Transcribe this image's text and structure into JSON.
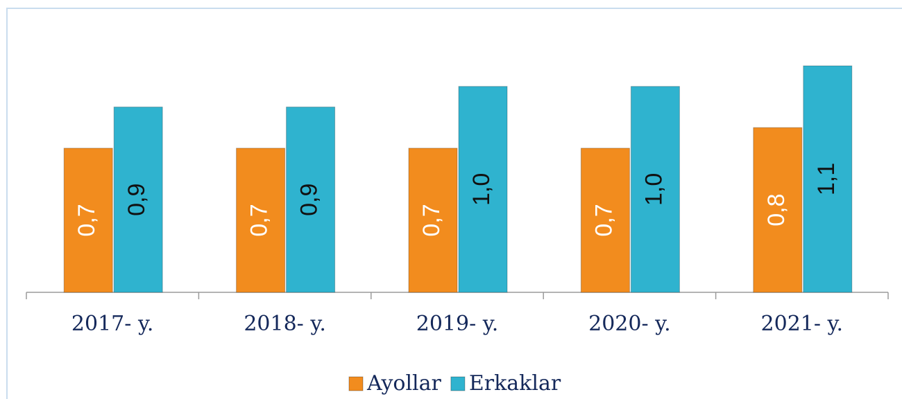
{
  "chart_data": {
    "type": "bar",
    "categories": [
      "2017- y.",
      "2018- y.",
      "2019- y.",
      "2020- y.",
      "2021- y."
    ],
    "series": [
      {
        "name": "Ayollar",
        "color": "#f28c1e",
        "values": [
          0.7,
          0.7,
          0.7,
          0.7,
          0.8
        ],
        "value_labels": [
          "0,7",
          "0,7",
          "0,7",
          "0,7",
          "0,8"
        ],
        "label_color": "#ffffff"
      },
      {
        "name": "Erkaklar",
        "color": "#2fb3cf",
        "values": [
          0.9,
          0.9,
          1.0,
          1.0,
          1.1
        ],
        "value_labels": [
          "0,9",
          "0,9",
          "1,0",
          "1,0",
          "1,1"
        ],
        "label_color": "#111111"
      }
    ],
    "legend": "bottom"
  }
}
